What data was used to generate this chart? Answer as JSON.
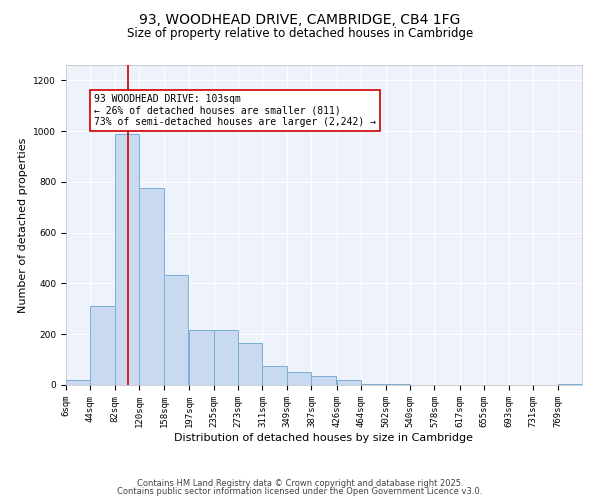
{
  "title": "93, WOODHEAD DRIVE, CAMBRIDGE, CB4 1FG",
  "subtitle": "Size of property relative to detached houses in Cambridge",
  "xlabel": "Distribution of detached houses by size in Cambridge",
  "ylabel": "Number of detached properties",
  "bin_labels": [
    "6sqm",
    "44sqm",
    "82sqm",
    "120sqm",
    "158sqm",
    "197sqm",
    "235sqm",
    "273sqm",
    "311sqm",
    "349sqm",
    "387sqm",
    "426sqm",
    "464sqm",
    "502sqm",
    "540sqm",
    "578sqm",
    "617sqm",
    "655sqm",
    "693sqm",
    "731sqm",
    "769sqm"
  ],
  "bar_heights": [
    20,
    310,
    990,
    775,
    435,
    215,
    215,
    165,
    75,
    50,
    35,
    18,
    5,
    2,
    1,
    0,
    0,
    0,
    0,
    0,
    3
  ],
  "bar_color": "#c9d9f0",
  "bar_edge_color": "#7bafd4",
  "property_line_x": 103,
  "bin_edges": [
    6,
    44,
    82,
    120,
    158,
    197,
    235,
    273,
    311,
    349,
    387,
    426,
    464,
    502,
    540,
    578,
    617,
    655,
    693,
    731,
    769
  ],
  "bin_width": 38,
  "ylim": [
    0,
    1260
  ],
  "annotation_title": "93 WOODHEAD DRIVE: 103sqm",
  "annotation_line1": "← 26% of detached houses are smaller (811)",
  "annotation_line2": "73% of semi-detached houses are larger (2,242) →",
  "annotation_box_facecolor": "#ffffff",
  "annotation_box_edge": "#cc0000",
  "red_line_color": "#cc0000",
  "footnote1": "Contains HM Land Registry data © Crown copyright and database right 2025.",
  "footnote2": "Contains public sector information licensed under the Open Government Licence v3.0.",
  "fig_facecolor": "#ffffff",
  "axes_facecolor": "#eef2fa",
  "grid_color": "#ffffff",
  "spine_color": "#bbbbbb",
  "title_fontsize": 10,
  "subtitle_fontsize": 8.5,
  "axis_label_fontsize": 8,
  "tick_fontsize": 6.5,
  "annotation_fontsize": 7,
  "footnote_fontsize": 6,
  "yticks": [
    0,
    200,
    400,
    600,
    800,
    1000,
    1200
  ]
}
